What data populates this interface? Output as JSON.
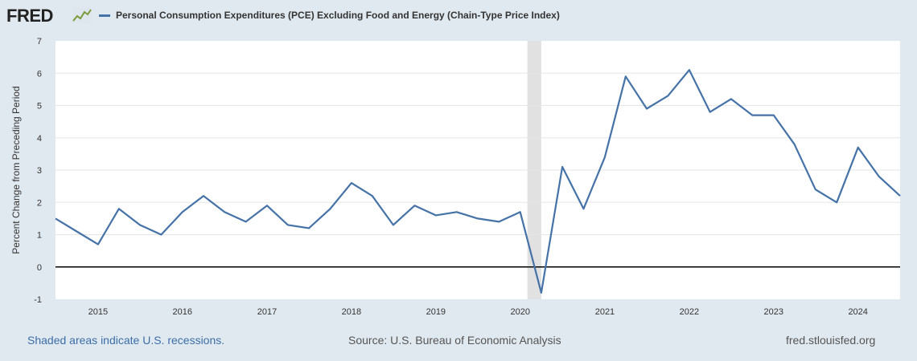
{
  "header": {
    "logo_text": "FRED",
    "logo_icon": "line-chart-icon",
    "legend_label": "Personal Consumption Expenditures (PCE) Excluding Food and Energy (Chain-Type Price Index)",
    "series_color": "#4572a7"
  },
  "footer": {
    "recession_note": "Shaded areas indicate U.S. recessions.",
    "source": "Source: U.S. Bureau of Economic Analysis",
    "site": "fred.stlouisfed.org"
  },
  "chart_data": {
    "type": "line",
    "title": "Personal Consumption Expenditures (PCE) Excluding Food and Energy (Chain-Type Price Index)",
    "ylabel": "Percent Change from Preceding Period",
    "xlabel": "",
    "ylim": [
      -1,
      7
    ],
    "yticks": [
      "-1",
      "0",
      "1",
      "2",
      "3",
      "4",
      "5",
      "6",
      "7"
    ],
    "xlim": [
      "2014-07-01",
      "2024-07-01"
    ],
    "xticks": [
      "2015",
      "2016",
      "2017",
      "2018",
      "2019",
      "2020",
      "2021",
      "2022",
      "2023",
      "2024"
    ],
    "grid": true,
    "recession_shading": [
      {
        "start": "2020-02-01",
        "end": "2020-04-01"
      }
    ],
    "series": [
      {
        "color": "#4572a7",
        "x": [
          "2014-07-01",
          "2014-10-01",
          "2015-01-01",
          "2015-04-01",
          "2015-07-01",
          "2015-10-01",
          "2016-01-01",
          "2016-04-01",
          "2016-07-01",
          "2016-10-01",
          "2017-01-01",
          "2017-04-01",
          "2017-07-01",
          "2017-10-01",
          "2018-01-01",
          "2018-04-01",
          "2018-07-01",
          "2018-10-01",
          "2019-01-01",
          "2019-04-01",
          "2019-07-01",
          "2019-10-01",
          "2020-01-01",
          "2020-04-01",
          "2020-07-01",
          "2020-10-01",
          "2021-01-01",
          "2021-04-01",
          "2021-07-01",
          "2021-10-01",
          "2022-01-01",
          "2022-04-01",
          "2022-07-01",
          "2022-10-01",
          "2023-01-01",
          "2023-04-01",
          "2023-07-01",
          "2023-10-01",
          "2024-01-01",
          "2024-04-01",
          "2024-07-01"
        ],
        "values": [
          1.5,
          1.1,
          0.7,
          1.8,
          1.3,
          1.0,
          1.7,
          2.2,
          1.7,
          1.4,
          1.9,
          1.3,
          1.2,
          1.8,
          2.6,
          2.2,
          1.3,
          1.9,
          1.6,
          1.7,
          1.5,
          1.4,
          1.7,
          -0.8,
          3.1,
          1.8,
          3.4,
          5.9,
          4.9,
          5.3,
          6.1,
          4.8,
          5.2,
          4.7,
          4.7,
          3.8,
          2.4,
          2.0,
          3.7,
          2.8,
          2.2
        ]
      }
    ]
  }
}
